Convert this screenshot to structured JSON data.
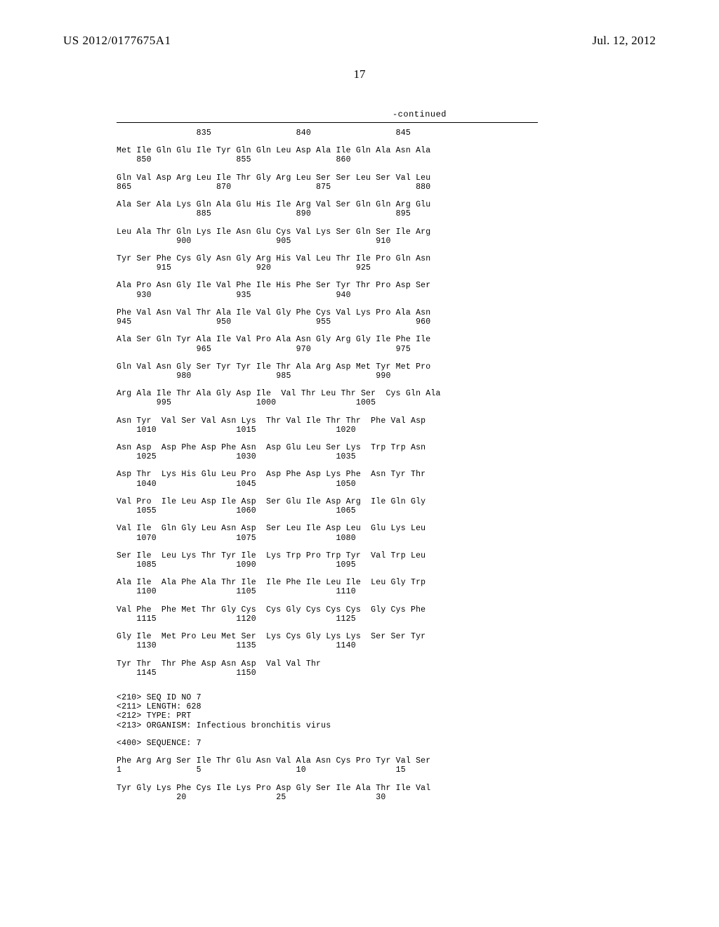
{
  "header": {
    "pub_number": "US 2012/0177675A1",
    "pub_date": "Jul. 12, 2012"
  },
  "page_number": "17",
  "continued_label": "-continued",
  "sequence_blocks": [
    {
      "aa": "                835                 840                 845",
      "num": ""
    },
    {
      "aa": "Met Ile Gln Glu Ile Tyr Gln Gln Leu Asp Ala Ile Gln Ala Asn Ala",
      "num": "    850                 855                 860"
    },
    {
      "aa": "Gln Val Asp Arg Leu Ile Thr Gly Arg Leu Ser Ser Leu Ser Val Leu",
      "num": "865                 870                 875                 880"
    },
    {
      "aa": "Ala Ser Ala Lys Gln Ala Glu His Ile Arg Val Ser Gln Gln Arg Glu",
      "num": "                885                 890                 895"
    },
    {
      "aa": "Leu Ala Thr Gln Lys Ile Asn Glu Cys Val Lys Ser Gln Ser Ile Arg",
      "num": "            900                 905                 910"
    },
    {
      "aa": "Tyr Ser Phe Cys Gly Asn Gly Arg His Val Leu Thr Ile Pro Gln Asn",
      "num": "        915                 920                 925"
    },
    {
      "aa": "Ala Pro Asn Gly Ile Val Phe Ile His Phe Ser Tyr Thr Pro Asp Ser",
      "num": "    930                 935                 940"
    },
    {
      "aa": "Phe Val Asn Val Thr Ala Ile Val Gly Phe Cys Val Lys Pro Ala Asn",
      "num": "945                 950                 955                 960"
    },
    {
      "aa": "Ala Ser Gln Tyr Ala Ile Val Pro Ala Asn Gly Arg Gly Ile Phe Ile",
      "num": "                965                 970                 975"
    },
    {
      "aa": "Gln Val Asn Gly Ser Tyr Tyr Ile Thr Ala Arg Asp Met Tyr Met Pro",
      "num": "            980                 985                 990"
    },
    {
      "aa": "Arg Ala Ile Thr Ala Gly Asp Ile  Val Thr Leu Thr Ser  Cys Gln Ala",
      "num": "        995                 1000                1005"
    },
    {
      "aa": "Asn Tyr  Val Ser Val Asn Lys  Thr Val Ile Thr Thr  Phe Val Asp",
      "num": "    1010                1015                1020"
    },
    {
      "aa": "Asn Asp  Asp Phe Asp Phe Asn  Asp Glu Leu Ser Lys  Trp Trp Asn",
      "num": "    1025                1030                1035"
    },
    {
      "aa": "Asp Thr  Lys His Glu Leu Pro  Asp Phe Asp Lys Phe  Asn Tyr Thr",
      "num": "    1040                1045                1050"
    },
    {
      "aa": "Val Pro  Ile Leu Asp Ile Asp  Ser Glu Ile Asp Arg  Ile Gln Gly",
      "num": "    1055                1060                1065"
    },
    {
      "aa": "Val Ile  Gln Gly Leu Asn Asp  Ser Leu Ile Asp Leu  Glu Lys Leu",
      "num": "    1070                1075                1080"
    },
    {
      "aa": "Ser Ile  Leu Lys Thr Tyr Ile  Lys Trp Pro Trp Tyr  Val Trp Leu",
      "num": "    1085                1090                1095"
    },
    {
      "aa": "Ala Ile  Ala Phe Ala Thr Ile  Ile Phe Ile Leu Ile  Leu Gly Trp",
      "num": "    1100                1105                1110"
    },
    {
      "aa": "Val Phe  Phe Met Thr Gly Cys  Cys Gly Cys Cys Cys  Gly Cys Phe",
      "num": "    1115                1120                1125"
    },
    {
      "aa": "Gly Ile  Met Pro Leu Met Ser  Lys Cys Gly Lys Lys  Ser Ser Tyr",
      "num": "    1130                1135                1140"
    },
    {
      "aa": "Tyr Thr  Thr Phe Asp Asn Asp  Val Val Thr",
      "num": "    1145                1150"
    }
  ],
  "seq_header": {
    "lines": [
      "<210> SEQ ID NO 7",
      "<211> LENGTH: 628",
      "<212> TYPE: PRT",
      "<213> ORGANISM: Infectious bronchitis virus"
    ]
  },
  "seq_label": "<400> SEQUENCE: 7",
  "second_sequence_blocks": [
    {
      "aa": "Phe Arg Arg Ser Ile Thr Glu Asn Val Ala Asn Cys Pro Tyr Val Ser",
      "num": "1               5                   10                  15"
    },
    {
      "aa": "Tyr Gly Lys Phe Cys Ile Lys Pro Asp Gly Ser Ile Ala Thr Ile Val",
      "num": "            20                  25                  30"
    }
  ]
}
